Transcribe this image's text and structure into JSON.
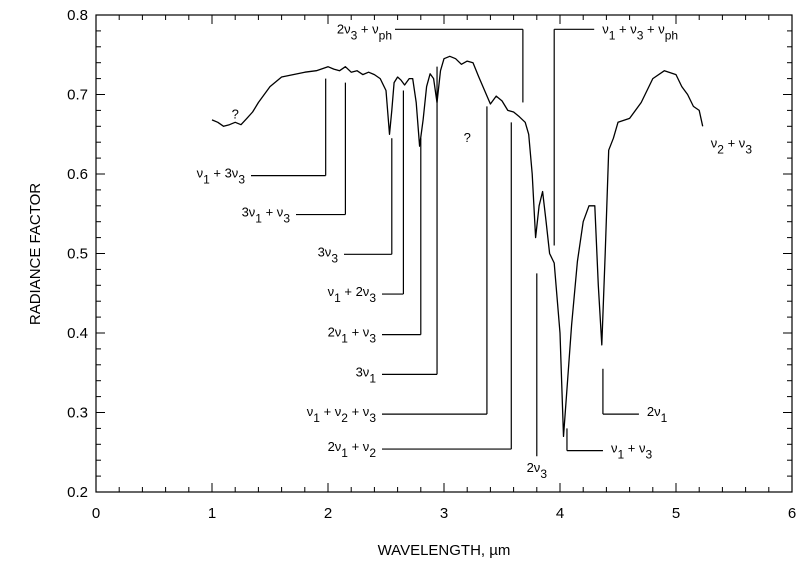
{
  "chart_data": {
    "type": "line",
    "xlabel": "WAVELENGTH, µm",
    "ylabel": "RADIANCE FACTOR",
    "xlim": [
      0,
      6
    ],
    "ylim": [
      0.2,
      0.8
    ],
    "xticks": [
      "0",
      "1",
      "2",
      "3",
      "4",
      "5",
      "6"
    ],
    "yticks": [
      "0.2",
      "0.3",
      "0.4",
      "0.5",
      "0.6",
      "0.7",
      "0.8"
    ],
    "grid": false,
    "series": [
      {
        "x": [
          1.0,
          1.05,
          1.1,
          1.15,
          1.2,
          1.25,
          1.3,
          1.35,
          1.4,
          1.5,
          1.6,
          1.7,
          1.8,
          1.9,
          2.0,
          2.05,
          2.1,
          2.15,
          2.2,
          2.25,
          2.3,
          2.35,
          2.4,
          2.45,
          2.5,
          2.53,
          2.55,
          2.57,
          2.6,
          2.63,
          2.66,
          2.7,
          2.73,
          2.76,
          2.79,
          2.82,
          2.85,
          2.88,
          2.91,
          2.94,
          2.97,
          3.0,
          3.05,
          3.1,
          3.15,
          3.2,
          3.25,
          3.3,
          3.35,
          3.4,
          3.45,
          3.5,
          3.55,
          3.6,
          3.65,
          3.7,
          3.73,
          3.76,
          3.79,
          3.82,
          3.85,
          3.88,
          3.91,
          3.95,
          4.0,
          4.03,
          4.06,
          4.1,
          4.15,
          4.2,
          4.25,
          4.3,
          4.33,
          4.36,
          4.39,
          4.42,
          4.46,
          4.5,
          4.6,
          4.7,
          4.8,
          4.9,
          5.0,
          5.05,
          5.1,
          5.15,
          5.2,
          5.23
        ],
        "y": [
          0.668,
          0.665,
          0.66,
          0.662,
          0.665,
          0.662,
          0.67,
          0.678,
          0.69,
          0.71,
          0.722,
          0.725,
          0.728,
          0.73,
          0.735,
          0.732,
          0.73,
          0.735,
          0.728,
          0.73,
          0.725,
          0.728,
          0.725,
          0.72,
          0.705,
          0.65,
          0.68,
          0.715,
          0.722,
          0.718,
          0.712,
          0.72,
          0.72,
          0.69,
          0.635,
          0.668,
          0.71,
          0.726,
          0.72,
          0.69,
          0.73,
          0.745,
          0.748,
          0.745,
          0.738,
          0.742,
          0.74,
          0.722,
          0.705,
          0.688,
          0.698,
          0.692,
          0.68,
          0.678,
          0.672,
          0.665,
          0.65,
          0.6,
          0.52,
          0.56,
          0.578,
          0.54,
          0.5,
          0.488,
          0.4,
          0.27,
          0.33,
          0.41,
          0.49,
          0.54,
          0.56,
          0.56,
          0.46,
          0.385,
          0.5,
          0.63,
          0.645,
          0.665,
          0.67,
          0.69,
          0.72,
          0.73,
          0.725,
          0.71,
          0.7,
          0.685,
          0.68,
          0.66
        ]
      }
    ],
    "annotations": [
      {
        "text": "?",
        "x": 1.2,
        "y": 0.675
      },
      {
        "text": "?",
        "x": 3.2,
        "y": 0.645
      }
    ],
    "band_labels": [
      {
        "id": "nu1-3nu3",
        "a": "ν",
        "a_sub": "1",
        "b": " + 3ν",
        "b_sub": "3",
        "c": "",
        "c_sub": "",
        "x": 1.98,
        "y": 0.598
      },
      {
        "id": "3nu1-nu3",
        "a": "3ν",
        "a_sub": "1",
        "b": " + ν",
        "b_sub": "3",
        "c": "",
        "c_sub": "",
        "x": 2.15,
        "y": 0.549
      },
      {
        "id": "3nu3",
        "a": "3ν",
        "a_sub": "3",
        "b": "",
        "b_sub": "",
        "c": "",
        "c_sub": "",
        "x": 2.55,
        "y": 0.499
      },
      {
        "id": "nu1-2nu3",
        "a": "ν",
        "a_sub": "1",
        "b": " + 2ν",
        "b_sub": "3",
        "c": "",
        "c_sub": "",
        "x": 2.65,
        "y": 0.449
      },
      {
        "id": "2nu1-nu3",
        "a": "2ν",
        "a_sub": "1",
        "b": " + ν",
        "b_sub": "3",
        "c": "",
        "c_sub": "",
        "x": 2.8,
        "y": 0.398
      },
      {
        "id": "3nu1",
        "a": "3ν",
        "a_sub": "1",
        "b": "",
        "b_sub": "",
        "c": "",
        "c_sub": "",
        "x": 2.94,
        "y": 0.348
      },
      {
        "id": "nu1-nu2-nu3",
        "a": "ν",
        "a_sub": "1",
        "b": " + ν",
        "b_sub": "2",
        "c": " + ν",
        "c_sub": "3",
        "x": 3.37,
        "y": 0.298
      },
      {
        "id": "2nu1-nu2",
        "a": "2ν",
        "a_sub": "1",
        "b": " + ν",
        "b_sub": "2",
        "c": "",
        "c_sub": "",
        "x": 3.58,
        "y": 0.254
      }
    ],
    "right_labels": [
      {
        "id": "2nu1-right",
        "a": "2ν",
        "a_sub": "1",
        "b": "",
        "b_sub": "",
        "x": 4.37,
        "y": 0.298
      },
      {
        "id": "nu1-nu3",
        "a": "ν",
        "a_sub": "1",
        "b": " + ν",
        "b_sub": "3",
        "x": 4.06,
        "y": 0.252
      },
      {
        "id": "nu2-nu3",
        "a": "ν",
        "a_sub": "2",
        "b": " + ν",
        "b_sub": "3",
        "x": 5.3,
        "y": 0.636
      }
    ],
    "top_labels": [
      {
        "id": "2nu3-nuph",
        "text_a": "2ν",
        "sub_a": "3",
        "text_b": " + ν",
        "sub_b": "ph",
        "x": 3.68,
        "y": 0.69
      },
      {
        "id": "nu1-nu3-nuph",
        "text_a": "ν",
        "sub_a": "1",
        "text_b": " + ν",
        "sub_b": "3",
        "text_c": " + ν",
        "sub_c": "ph",
        "x": 3.95,
        "y": 0.51
      }
    ],
    "bottom_label": {
      "id": "2nu3-bottom",
      "a": "2ν",
      "a_sub": "3",
      "x": 3.8,
      "y": 0.475
    }
  }
}
